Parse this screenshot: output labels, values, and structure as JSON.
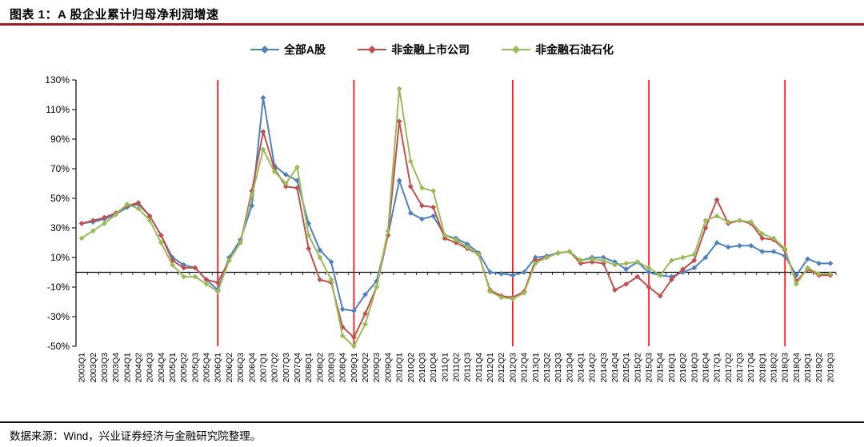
{
  "page": {
    "title": "图表 1：A 股企业累计归母净利润增速",
    "source": "数据来源：Wind，兴业证券经济与金融研究院整理。",
    "accent_color": "#9c1d1f"
  },
  "chart_data": {
    "type": "line",
    "title": "A 股企业累计归母净利润增速",
    "categories": [
      "2003Q1",
      "2003Q2",
      "2003Q3",
      "2003Q4",
      "2004Q1",
      "2004Q2",
      "2004Q3",
      "2004Q4",
      "2005Q1",
      "2005Q2",
      "2005Q3",
      "2005Q4",
      "2006Q1",
      "2006Q2",
      "2006Q3",
      "2006Q4",
      "2007Q1",
      "2007Q2",
      "2007Q3",
      "2007Q4",
      "2008Q1",
      "2008Q2",
      "2008Q3",
      "2008Q4",
      "2009Q1",
      "2009Q2",
      "2009Q3",
      "2009Q4",
      "2010Q1",
      "2010Q2",
      "2010Q3",
      "2010Q4",
      "2011Q1",
      "2011Q2",
      "2011Q3",
      "2011Q4",
      "2012Q1",
      "2012Q2",
      "2012Q3",
      "2012Q4",
      "2013Q1",
      "2013Q2",
      "2013Q3",
      "2013Q4",
      "2014Q1",
      "2014Q2",
      "2014Q3",
      "2014Q4",
      "2015Q1",
      "2015Q2",
      "2015Q3",
      "2015Q4",
      "2016Q1",
      "2016Q2",
      "2016Q3",
      "2016Q4",
      "2017Q1",
      "2017Q2",
      "2017Q3",
      "2017Q4",
      "2018Q1",
      "2018Q2",
      "2018Q3",
      "2018Q4",
      "2019Q1",
      "2019Q2",
      "2019Q3"
    ],
    "series": [
      {
        "name": "全部A股",
        "color": "#4F81BD",
        "marker": "diamond",
        "values": [
          33,
          34,
          36,
          39,
          44,
          46,
          38,
          25,
          10,
          5,
          3,
          -5,
          -12,
          10,
          22,
          45,
          118,
          72,
          66,
          62,
          33,
          15,
          7,
          -25,
          -26,
          -15,
          -6,
          25,
          62,
          40,
          36,
          38,
          25,
          23,
          19,
          13,
          0,
          -1,
          -2,
          0,
          10,
          11,
          13,
          14,
          8,
          10,
          10,
          7,
          2,
          7,
          0,
          -2,
          -3,
          0,
          3,
          10,
          20,
          17,
          18,
          18,
          14,
          14,
          11,
          -2,
          9,
          6,
          6
        ]
      },
      {
        "name": "非金融上市公司",
        "color": "#C0504D",
        "marker": "diamond",
        "values": [
          33,
          35,
          37,
          40,
          45,
          47,
          38,
          25,
          8,
          3,
          3,
          -5,
          -7,
          8,
          20,
          55,
          95,
          70,
          58,
          57,
          16,
          -5,
          -7,
          -37,
          -44,
          -28,
          -10,
          25,
          102,
          58,
          45,
          44,
          23,
          20,
          16,
          12,
          -12,
          -16,
          -17,
          -13,
          8,
          10,
          13,
          14,
          6,
          7,
          6,
          -12,
          -8,
          -3,
          -10,
          -16,
          -5,
          2,
          8,
          30,
          49,
          33,
          35,
          33,
          23,
          22,
          15,
          -6,
          2,
          -2,
          -2
        ]
      },
      {
        "name": "非金融石油石化",
        "color": "#9BBB59",
        "marker": "diamond",
        "values": [
          23,
          28,
          33,
          39,
          46,
          43,
          35,
          20,
          5,
          -3,
          -3,
          -8,
          -13,
          8,
          20,
          52,
          83,
          68,
          60,
          71,
          25,
          10,
          -5,
          -43,
          -50,
          -35,
          -10,
          28,
          124,
          75,
          57,
          55,
          25,
          22,
          17,
          12,
          -13,
          -17,
          -18,
          -14,
          6,
          10,
          13,
          14,
          8,
          9,
          8,
          5,
          6,
          7,
          3,
          -2,
          8,
          10,
          12,
          35,
          38,
          34,
          35,
          34,
          26,
          23,
          16,
          -8,
          3,
          -1,
          -1
        ]
      }
    ],
    "ylim": [
      -50,
      130
    ],
    "ytick_step": 20,
    "ytick_suffix": "%",
    "grid": false,
    "legend_position": "top",
    "vlines": {
      "color": "#FF0000",
      "at": [
        "2006Q1",
        "2009Q1",
        "2012Q3",
        "2015Q3",
        "2018Q3"
      ]
    }
  }
}
